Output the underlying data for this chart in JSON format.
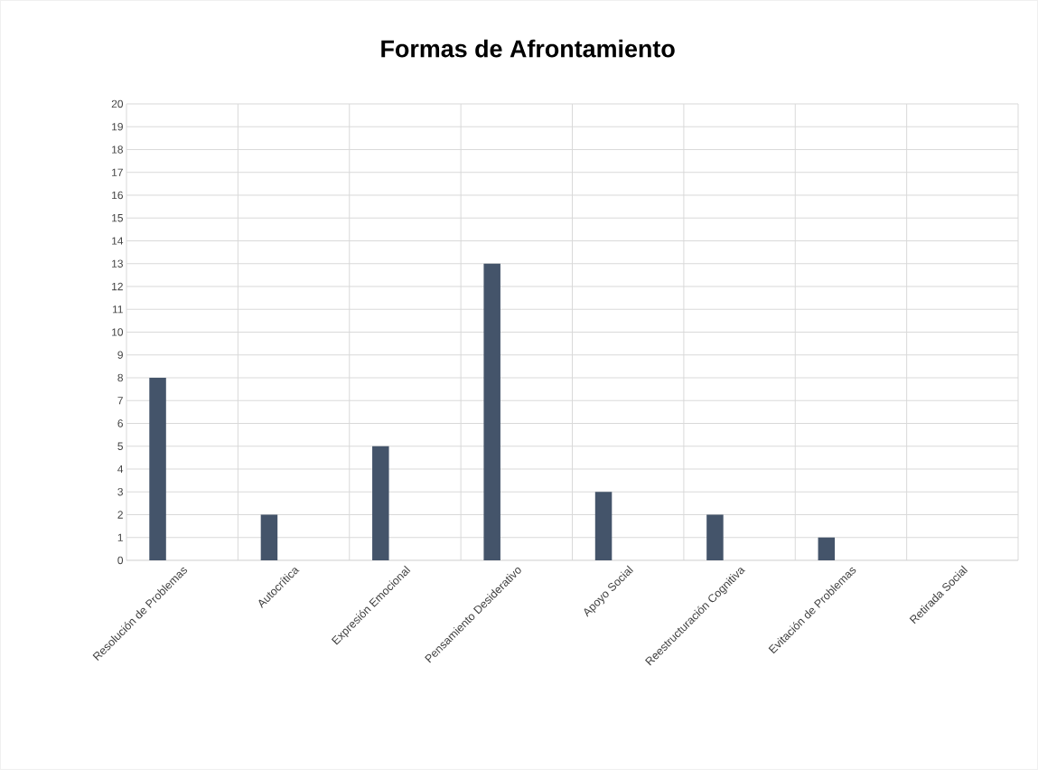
{
  "chart_data": {
    "type": "bar",
    "title": "Formas de Afrontamiento",
    "categories": [
      "Resolución de Problemas",
      "Autocrítica",
      "Expresión Emocional",
      "Pensamiento Desiderativo",
      "Apoyo Social",
      "Reestructuración Cognitiva",
      "Evitación de Problemas",
      "Retirada Social"
    ],
    "values": [
      8,
      2,
      5,
      13,
      3,
      2,
      1,
      0
    ],
    "color": "#44546a",
    "ylim": [
      0,
      20
    ],
    "yticks": [
      0,
      1,
      2,
      3,
      4,
      5,
      6,
      7,
      8,
      9,
      10,
      11,
      12,
      13,
      14,
      15,
      16,
      17,
      18,
      19,
      20
    ],
    "grid": true
  }
}
